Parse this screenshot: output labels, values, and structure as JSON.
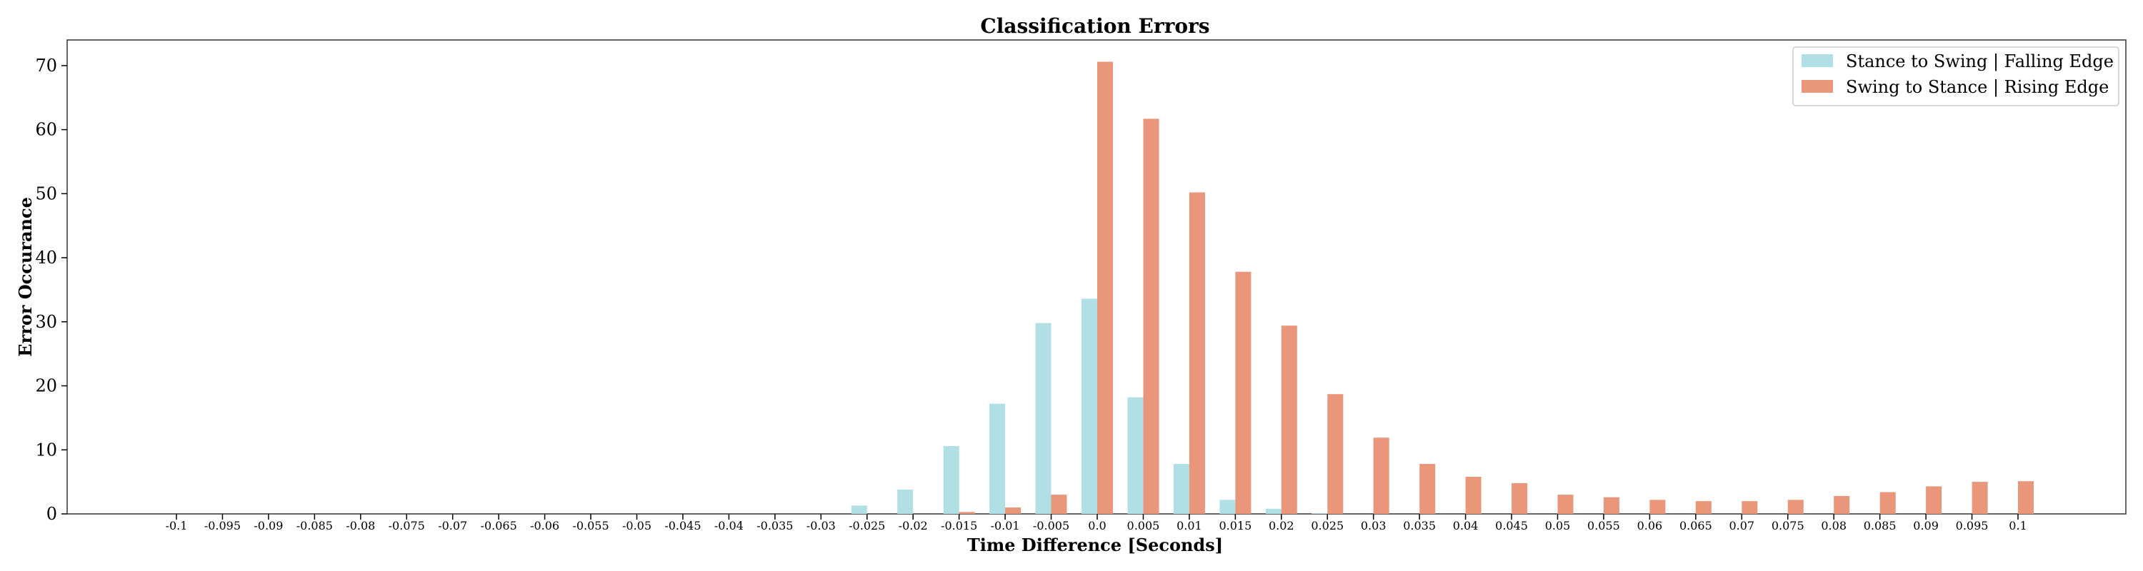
{
  "chart_data": {
    "type": "bar",
    "title": "Classification Errors",
    "xlabel": "Time Difference [Seconds]",
    "ylabel": "Error Occurance",
    "ylim": [
      0,
      74
    ],
    "yticks": [
      "0",
      "10",
      "20",
      "30",
      "40",
      "50",
      "60",
      "70"
    ],
    "grid": false,
    "legend_placement": "top-right",
    "categories": [
      "-0.1",
      "-0.095",
      "-0.09",
      "-0.085",
      "-0.08",
      "-0.075",
      "-0.07",
      "-0.065",
      "-0.06",
      "-0.055",
      "-0.05",
      "-0.045",
      "-0.04",
      "-0.035",
      "-0.03",
      "-0.025",
      "-0.02",
      "-0.015",
      "-0.01",
      "-0.005",
      "0.0",
      "0.005",
      "0.01",
      "0.015",
      "0.02",
      "0.025",
      "0.03",
      "0.035",
      "0.04",
      "0.045",
      "0.05",
      "0.055",
      "0.06",
      "0.065",
      "0.07",
      "0.075",
      "0.08",
      "0.085",
      "0.09",
      "0.095",
      "0.1"
    ],
    "series": [
      {
        "name": "Stance to Swing | Falling Edge",
        "color": "#b0dfe5",
        "values": [
          0,
          0,
          0,
          0,
          0,
          0,
          0,
          0,
          0,
          0,
          0,
          0,
          0,
          0,
          0,
          1.3,
          3.8,
          10.6,
          17.2,
          29.8,
          33.6,
          18.2,
          7.8,
          2.2,
          0.8,
          0.1,
          0,
          0,
          0,
          0,
          0,
          0,
          0,
          0,
          0,
          0,
          0,
          0,
          0,
          0,
          0
        ]
      },
      {
        "name": "Swing to Stance | Rising Edge",
        "color": "#e9967a",
        "values": [
          0,
          0,
          0,
          0,
          0,
          0,
          0,
          0,
          0,
          0,
          0,
          0,
          0,
          0,
          0,
          0,
          0,
          0.3,
          1.0,
          3.0,
          70.6,
          61.7,
          50.2,
          37.8,
          29.4,
          18.7,
          11.9,
          7.8,
          5.8,
          4.8,
          3.0,
          2.6,
          2.2,
          2.0,
          2.0,
          2.2,
          2.8,
          3.4,
          4.3,
          5.0,
          5.1
        ]
      }
    ]
  }
}
